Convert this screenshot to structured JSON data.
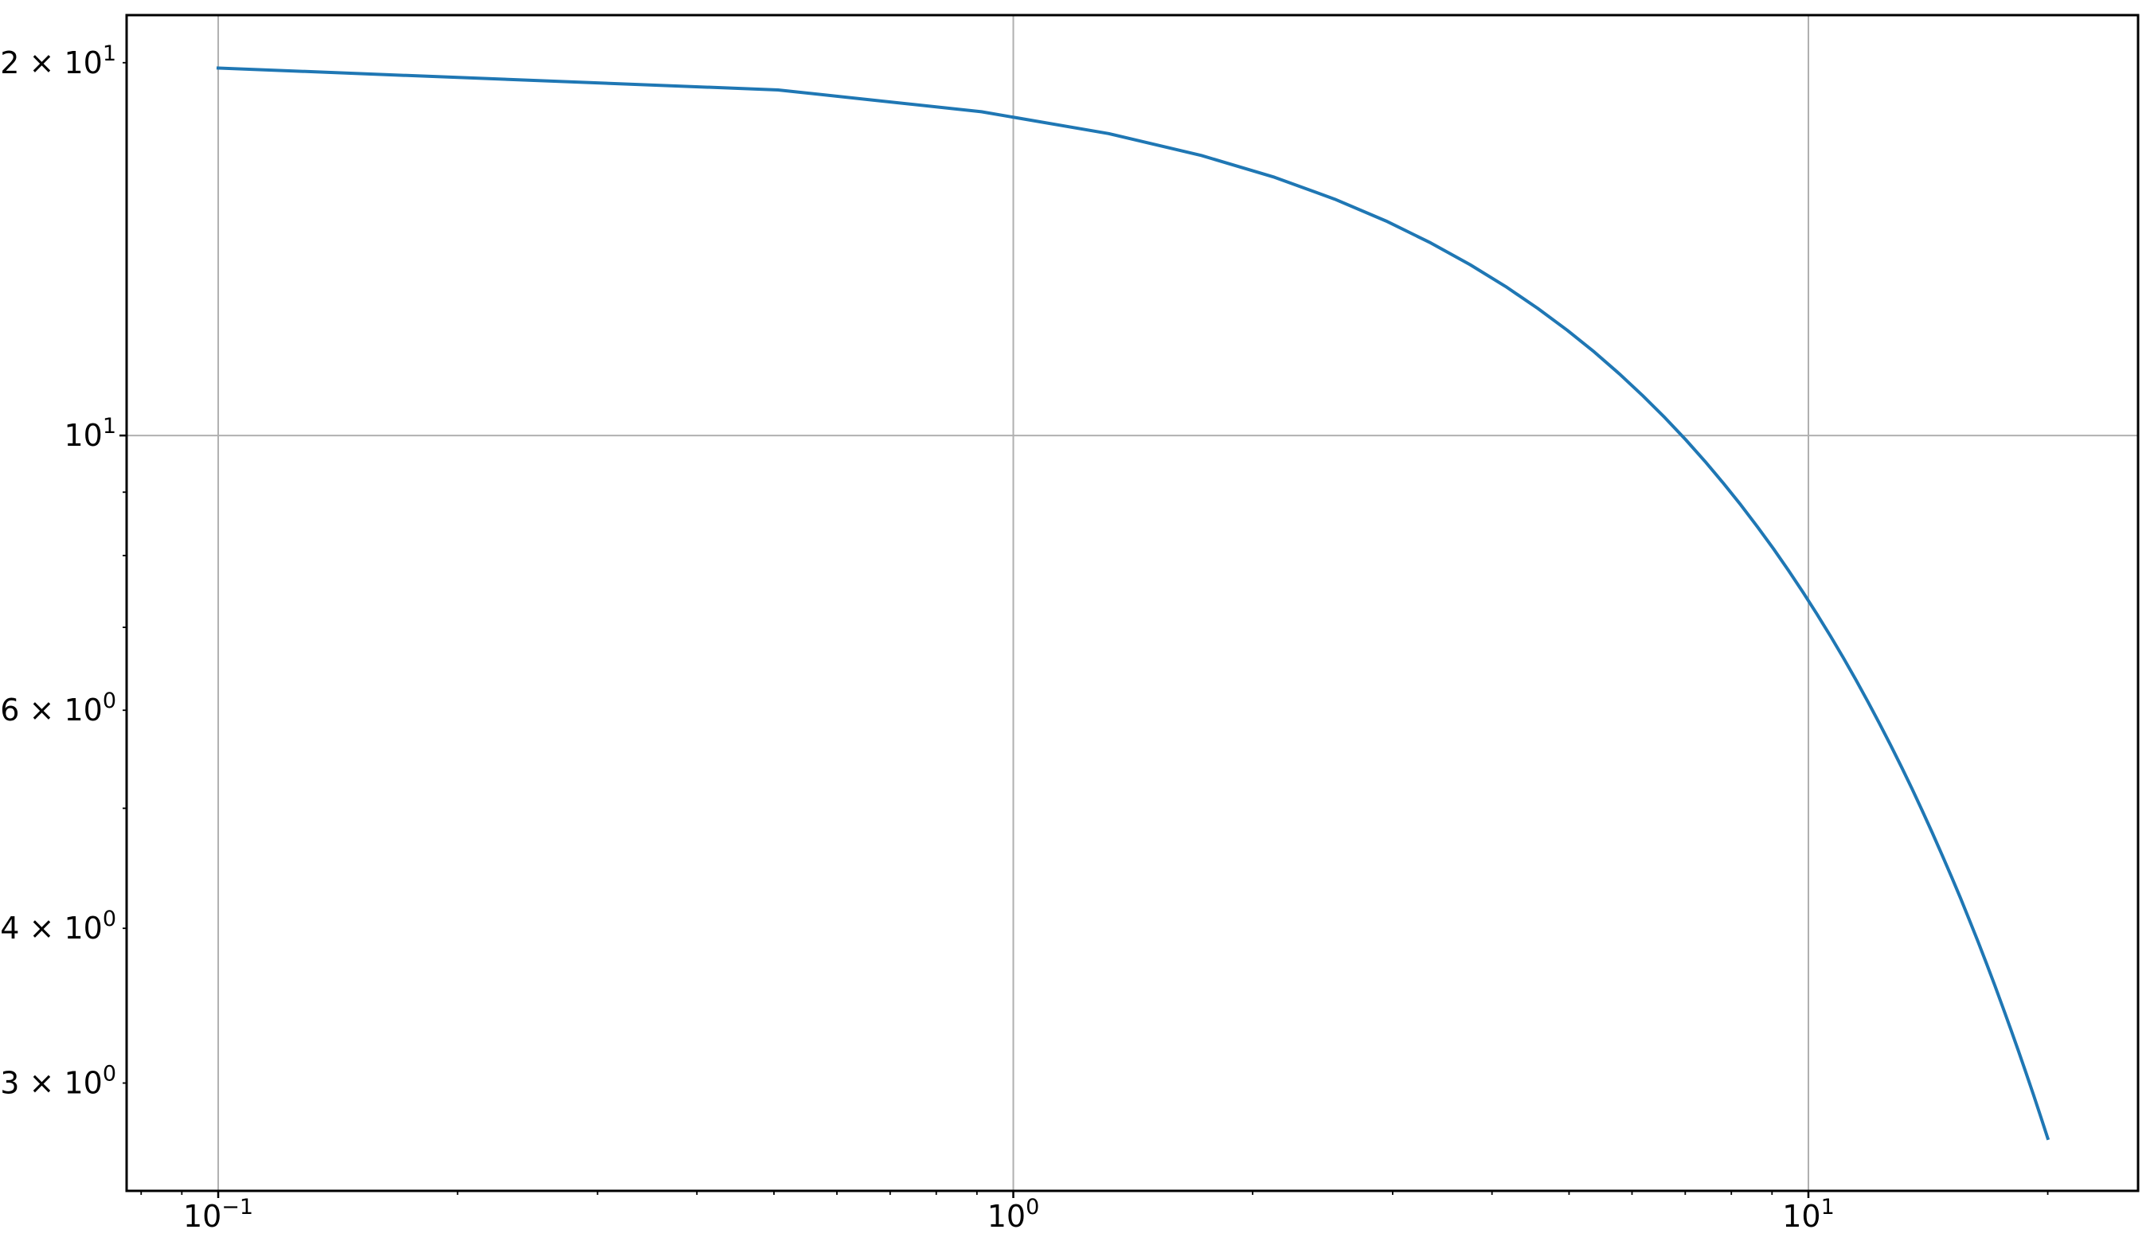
{
  "chart_data": {
    "type": "line",
    "title": "",
    "xlabel": "",
    "ylabel": "",
    "xscale": "log",
    "yscale": "log",
    "xlim": [
      0.0767,
      25.98
    ],
    "ylim": [
      2.455,
      21.85
    ],
    "grid": "major ticks only",
    "line_color": "#1f77b4",
    "x_ticks": [
      {
        "value": 0.1,
        "base": "10",
        "exp": "−1"
      },
      {
        "value": 1,
        "base": "10",
        "exp": "0"
      },
      {
        "value": 10,
        "base": "10",
        "exp": "1"
      }
    ],
    "x_minor_ticks": [
      0.08,
      0.09,
      0.2,
      0.3,
      0.4,
      0.5,
      0.6,
      0.7,
      0.8,
      0.9,
      2,
      3,
      4,
      5,
      6,
      7,
      8,
      9,
      20
    ],
    "y_ticks": [
      {
        "value": 20,
        "base": "2 × 10",
        "exp": "1"
      },
      {
        "value": 10,
        "base": "10",
        "exp": "1"
      },
      {
        "value": 6,
        "base": "6 × 10",
        "exp": "0"
      },
      {
        "value": 4,
        "base": "4 × 10",
        "exp": "0"
      },
      {
        "value": 3,
        "base": "3 × 10",
        "exp": "0"
      }
    ],
    "y_major_grid": [
      10
    ],
    "x_major_grid": [
      0.1,
      1,
      10
    ],
    "y_minor_ticks": [
      5,
      7,
      8,
      9
    ],
    "series": [
      {
        "x": [
          0.1,
          0.506,
          0.912,
          1.318,
          1.724,
          2.131,
          2.537,
          2.943,
          3.349,
          3.755,
          4.161,
          4.567,
          4.973,
          5.38,
          5.786,
          6.192,
          6.598,
          7.004,
          7.41,
          7.816,
          8.222,
          8.629,
          9.035,
          9.441,
          9.847,
          10.253,
          10.659,
          11.065,
          11.471,
          11.878,
          12.284,
          12.69,
          13.096,
          13.502,
          13.908,
          14.314,
          14.72,
          15.127,
          15.533,
          15.939,
          16.345,
          16.751,
          17.157,
          17.563,
          17.969,
          18.376,
          18.782,
          19.188,
          19.594,
          20.0
        ],
        "y": [
          19.801,
          19.013,
          18.256,
          17.53,
          16.832,
          16.162,
          15.519,
          14.901,
          14.308,
          13.739,
          13.192,
          12.667,
          12.163,
          11.679,
          11.214,
          10.767,
          10.339,
          9.928,
          9.533,
          9.153,
          8.789,
          8.439,
          8.103,
          7.781,
          7.471,
          7.173,
          6.888,
          6.614,
          6.351,
          6.098,
          5.855,
          5.622,
          5.398,
          5.184,
          4.977,
          4.779,
          4.589,
          4.406,
          4.231,
          4.063,
          3.901,
          3.746,
          3.597,
          3.453,
          3.316,
          3.184,
          3.057,
          2.936,
          2.819,
          2.707
        ]
      }
    ]
  }
}
